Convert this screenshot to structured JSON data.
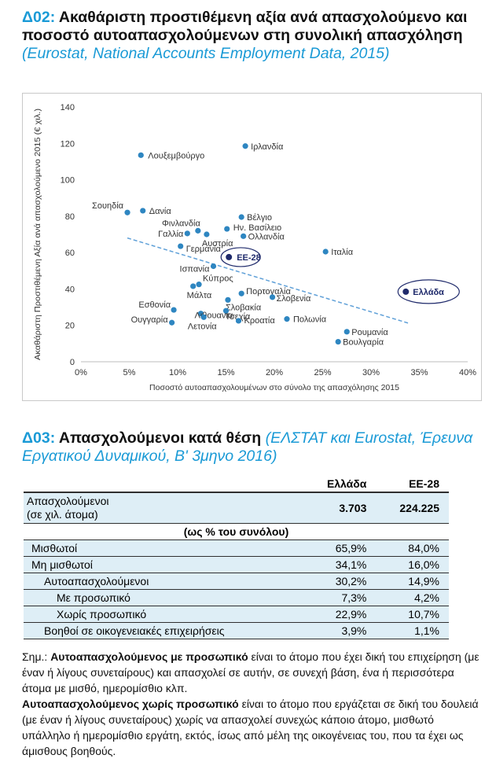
{
  "section1": {
    "code": "Δ02:",
    "title": "Ακαθάριστη προστιθέμενη αξία ανά απασχολούμενο και ποσοστό αυτοαπασχολούμενων στη συνολική απασχόληση",
    "source": "(Eurostat, National Accounts Employment Data, 2015)"
  },
  "chart_data": {
    "type": "scatter",
    "xlabel": "Ποσοστό αυτοαπασχολουμένων στο σύνολο της απασχόλησης 2015",
    "ylabel": "Ακαθάριστη Προστιθέμενη Αξία ανά απασχολούμενο 2015 (€ χιλ.)",
    "xlim": [
      0,
      40
    ],
    "ylim": [
      0,
      140
    ],
    "x_ticks": [
      "0%",
      "5%",
      "10%",
      "15%",
      "20%",
      "25%",
      "30%",
      "35%",
      "40%"
    ],
    "y_ticks": [
      "0",
      "20",
      "40",
      "60",
      "80",
      "100",
      "120",
      "140"
    ],
    "grid": false,
    "point_color": "#2e86c1",
    "highlight_color": "#1f2a6b",
    "trendline": {
      "style": "dashed",
      "color": "#5fa0d8",
      "from": [
        4.8,
        68
      ],
      "to": [
        34,
        21
      ]
    },
    "points": [
      {
        "label": "Ιρλανδία",
        "x": 17.0,
        "y": 118.5
      },
      {
        "label": "Λουξεμβούργο",
        "x": 6.2,
        "y": 113.5
      },
      {
        "label": "Σουηδία",
        "x": 4.8,
        "y": 82
      },
      {
        "label": "Δανία",
        "x": 6.4,
        "y": 83
      },
      {
        "label": "Βέλγιο",
        "x": 16.6,
        "y": 79.5
      },
      {
        "label": "Φινλανδία",
        "x": 12.1,
        "y": 72
      },
      {
        "label": "Ην. Βασίλειο",
        "x": 15.1,
        "y": 73
      },
      {
        "label": "Γαλλία",
        "x": 11.0,
        "y": 70.5
      },
      {
        "label": "Αυστρία",
        "x": 13.0,
        "y": 70
      },
      {
        "label": "Ολλανδία",
        "x": 16.8,
        "y": 69
      },
      {
        "label": "Γερμανία",
        "x": 10.3,
        "y": 63.5
      },
      {
        "label": "Ιταλία",
        "x": 25.3,
        "y": 60.5
      },
      {
        "label": "Ισπανία",
        "x": 13.7,
        "y": 52.5
      },
      {
        "label": "Κύπρος",
        "x": 12.2,
        "y": 42.5
      },
      {
        "label": "Μάλτα",
        "x": 11.6,
        "y": 41.5
      },
      {
        "label": "Πορτογαλία",
        "x": 16.6,
        "y": 37.5
      },
      {
        "label": "Σλοβενία",
        "x": 19.8,
        "y": 35.5
      },
      {
        "label": "Σλοβακία",
        "x": 15.2,
        "y": 34
      },
      {
        "label": "Εσθονία",
        "x": 9.6,
        "y": 28.5
      },
      {
        "label": "Λιθουανία",
        "x": 12.4,
        "y": 26.5
      },
      {
        "label": "Τσεχία",
        "x": 15.0,
        "y": 28
      },
      {
        "label": "Ουγγαρία",
        "x": 9.4,
        "y": 21.5
      },
      {
        "label": "Λετονία",
        "x": 12.7,
        "y": 24.5
      },
      {
        "label": "Κροατία",
        "x": 16.3,
        "y": 22.5
      },
      {
        "label": "Πολωνία",
        "x": 21.3,
        "y": 23.5
      },
      {
        "label": "Ρουμανία",
        "x": 27.5,
        "y": 16.5
      },
      {
        "label": "Βουλγαρία",
        "x": 26.6,
        "y": 11
      }
    ],
    "highlights": [
      {
        "label": "ΕΕ-28",
        "x": 15.3,
        "y": 57.5
      },
      {
        "label": "Ελλάδα",
        "x": 33.6,
        "y": 38.5
      }
    ]
  },
  "section2": {
    "code": "Δ03:",
    "title": "Απασχολούμενοι κατά θέση",
    "source": "(ΕΛΣΤΑΤ και Eurostat, Έρευνα Εργατικού Δυναμικού, Β' 3μηνο 2016)"
  },
  "table": {
    "headers": [
      "",
      "Ελλάδα",
      "ΕΕ-28"
    ],
    "employed_label_line1": "Απασχολούμενοι",
    "employed_label_line2": "(σε χιλ. άτομα)",
    "employed_greece": "3.703",
    "employed_eu": "224.225",
    "pct_header": "(ως % του συνόλου)",
    "rows": [
      {
        "label": "Μισθωτοί",
        "greece": "65,9%",
        "eu": "84,0%"
      },
      {
        "label": "Μη μισθωτοί",
        "greece": "34,1%",
        "eu": "16,0%"
      },
      {
        "label": "Αυτοαπασχολούμενοι",
        "greece": "30,2%",
        "eu": "14,9%"
      },
      {
        "label": "Με προσωπικό",
        "greece": "7,3%",
        "eu": "4,2%"
      },
      {
        "label": "Χωρίς προσωπικό",
        "greece": "22,9%",
        "eu": "10,7%"
      },
      {
        "label": "Βοηθοί σε οικογενειακές επιχειρήσεις",
        "greece": "3,9%",
        "eu": "1,1%"
      }
    ]
  },
  "note": {
    "prefix": "Σημ.: ",
    "term1": "Αυτοαπασχολούμενος με προσωπικό",
    "text1": " είναι το άτομο που έχει δική του επιχείρηση (με έναν ή λίγους συνεταίρους) και απασχολεί σε αυτήν, σε συνεχή βάση, ένα ή περισσότερα άτομα με μισθό, ημερομίσθιο κλπ.",
    "term2": "Αυτοαπασχολούμενος χωρίς προσωπικό",
    "text2": " είναι το άτομο που εργάζεται σε δική του δουλειά (με έναν ή λίγους συνεταίρους) χωρίς να απασχολεί συνεχώς κάποιο άτομο, μισθωτό υπάλληλο ή ημερομίσθιο εργάτη, εκτός, ίσως από μέλη της οικογένειας του, που τα έχει ως άμισθους βοηθούς."
  }
}
